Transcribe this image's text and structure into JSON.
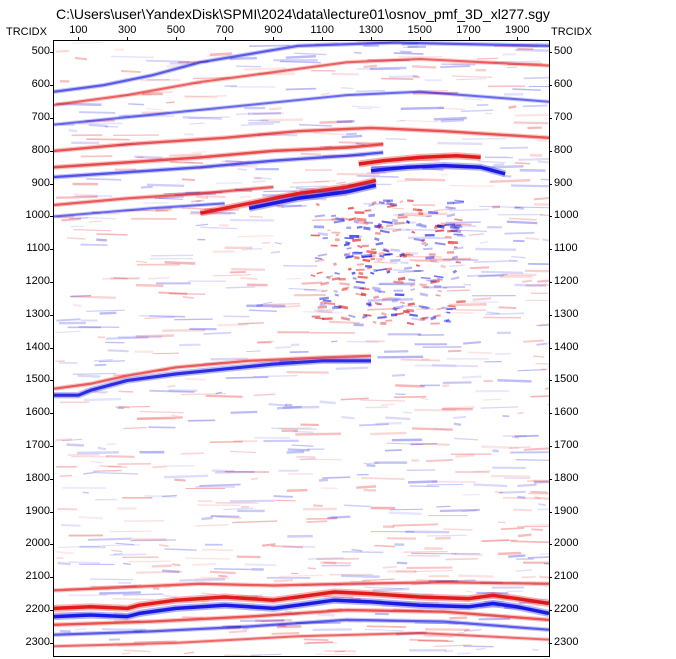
{
  "window": {
    "title": "C:\\Users\\user\\YandexDisk\\SPMI\\2024\\data\\lecture01\\osnov_pmf_3D_xl277.sgy"
  },
  "axes": {
    "left_label": "TRCIDX",
    "right_label": "TRCIDX"
  },
  "chart_data": {
    "type": "heatmap",
    "title": "C:\\Users\\user\\YandexDisk\\SPMI\\2024\\data\\lecture01\\osnov_pmf_3D_xl277.sgy",
    "x_ticks": [
      "100",
      "300",
      "500",
      "700",
      "900",
      "1100",
      "1300",
      "1500",
      "1700",
      "1900"
    ],
    "x_tick_values": [
      100,
      300,
      500,
      700,
      900,
      1100,
      1300,
      1500,
      1700,
      1900
    ],
    "xlim": [
      0,
      2030
    ],
    "y_ticks": [
      "500",
      "600",
      "700",
      "800",
      "900",
      "1000",
      "1100",
      "1200",
      "1300",
      "1400",
      "1500",
      "1600",
      "1700",
      "1800",
      "1900",
      "2000",
      "2100",
      "2200",
      "2300"
    ],
    "y_tick_values": [
      500,
      600,
      700,
      800,
      900,
      1000,
      1100,
      1200,
      1300,
      1400,
      1500,
      1600,
      1700,
      1800,
      1900,
      2000,
      2100,
      2200,
      2300
    ],
    "ylim": [
      465,
      2340
    ],
    "ylabel": "TRCIDX",
    "colormap": {
      "positive": "#e00000",
      "negative": "#0000e0",
      "zero": "#ffffff"
    },
    "reflectors": [
      {
        "name": "r0",
        "polarity": -1,
        "strength": 0.5,
        "points": [
          [
            0,
            620
          ],
          [
            200,
            600
          ],
          [
            400,
            570
          ],
          [
            600,
            530
          ],
          [
            800,
            505
          ],
          [
            1000,
            480
          ],
          [
            1400,
            470
          ],
          [
            2030,
            480
          ]
        ]
      },
      {
        "name": "r1",
        "polarity": 1,
        "strength": 0.45,
        "points": [
          [
            0,
            660
          ],
          [
            300,
            630
          ],
          [
            600,
            590
          ],
          [
            900,
            560
          ],
          [
            1200,
            530
          ],
          [
            1500,
            520
          ],
          [
            2030,
            540
          ]
        ]
      },
      {
        "name": "r2",
        "polarity": -1,
        "strength": 0.4,
        "points": [
          [
            0,
            720
          ],
          [
            400,
            690
          ],
          [
            800,
            660
          ],
          [
            1200,
            630
          ],
          [
            1500,
            620
          ],
          [
            2030,
            650
          ]
        ]
      },
      {
        "name": "r3",
        "polarity": 1,
        "strength": 0.55,
        "points": [
          [
            0,
            800
          ],
          [
            300,
            780
          ],
          [
            700,
            760
          ],
          [
            1000,
            740
          ],
          [
            1300,
            730
          ],
          [
            1600,
            740
          ],
          [
            2030,
            760
          ]
        ]
      },
      {
        "name": "r4",
        "polarity": 1,
        "strength": 0.6,
        "points": [
          [
            0,
            850
          ],
          [
            300,
            835
          ],
          [
            600,
            820
          ],
          [
            900,
            800
          ],
          [
            1200,
            790
          ],
          [
            1350,
            780
          ]
        ]
      },
      {
        "name": "r5",
        "polarity": -1,
        "strength": 0.55,
        "points": [
          [
            0,
            880
          ],
          [
            300,
            865
          ],
          [
            600,
            850
          ],
          [
            900,
            830
          ],
          [
            1200,
            815
          ],
          [
            1350,
            805
          ]
        ]
      },
      {
        "name": "r6",
        "polarity": 1,
        "strength": 1.0,
        "points": [
          [
            1250,
            840
          ],
          [
            1350,
            830
          ],
          [
            1500,
            820
          ],
          [
            1650,
            815
          ],
          [
            1750,
            820
          ]
        ]
      },
      {
        "name": "r7",
        "polarity": -1,
        "strength": 1.0,
        "points": [
          [
            1300,
            860
          ],
          [
            1450,
            850
          ],
          [
            1600,
            845
          ],
          [
            1750,
            850
          ],
          [
            1850,
            870
          ]
        ]
      },
      {
        "name": "r8",
        "polarity": 1,
        "strength": 0.95,
        "points": [
          [
            600,
            990
          ],
          [
            800,
            960
          ],
          [
            1000,
            930
          ],
          [
            1200,
            910
          ],
          [
            1320,
            890
          ]
        ]
      },
      {
        "name": "r9",
        "polarity": -1,
        "strength": 1.0,
        "points": [
          [
            800,
            975
          ],
          [
            1000,
            945
          ],
          [
            1200,
            925
          ],
          [
            1320,
            905
          ]
        ]
      },
      {
        "name": "r10",
        "polarity": 1,
        "strength": 0.5,
        "points": [
          [
            0,
            965
          ],
          [
            300,
            945
          ],
          [
            600,
            930
          ],
          [
            900,
            910
          ]
        ]
      },
      {
        "name": "r11",
        "polarity": -1,
        "strength": 0.4,
        "points": [
          [
            0,
            1000
          ],
          [
            400,
            975
          ],
          [
            700,
            960
          ]
        ]
      },
      {
        "name": "r12",
        "polarity": -1,
        "strength": 0.85,
        "points": [
          [
            0,
            1545
          ],
          [
            100,
            1545
          ],
          [
            150,
            1530
          ],
          [
            300,
            1500
          ],
          [
            500,
            1480
          ],
          [
            700,
            1465
          ],
          [
            900,
            1450
          ],
          [
            1100,
            1440
          ],
          [
            1300,
            1440
          ]
        ]
      },
      {
        "name": "r13",
        "polarity": 1,
        "strength": 0.5,
        "points": [
          [
            0,
            1525
          ],
          [
            150,
            1510
          ],
          [
            300,
            1485
          ],
          [
            500,
            1460
          ],
          [
            800,
            1440
          ],
          [
            1100,
            1430
          ],
          [
            1300,
            1425
          ]
        ]
      },
      {
        "name": "r14",
        "polarity": 1,
        "strength": 0.5,
        "points": [
          [
            0,
            2140
          ],
          [
            300,
            2130
          ],
          [
            600,
            2120
          ],
          [
            900,
            2125
          ],
          [
            1200,
            2120
          ],
          [
            1600,
            2115
          ],
          [
            2030,
            2120
          ]
        ]
      },
      {
        "name": "r15",
        "polarity": 1,
        "strength": 1.0,
        "points": [
          [
            0,
            2195
          ],
          [
            150,
            2190
          ],
          [
            300,
            2195
          ],
          [
            350,
            2185
          ],
          [
            500,
            2170
          ],
          [
            700,
            2160
          ],
          [
            800,
            2165
          ],
          [
            900,
            2170
          ],
          [
            1000,
            2160
          ],
          [
            1150,
            2145
          ],
          [
            1300,
            2150
          ],
          [
            1500,
            2160
          ],
          [
            1700,
            2165
          ],
          [
            1800,
            2155
          ],
          [
            1900,
            2165
          ],
          [
            2030,
            2180
          ]
        ]
      },
      {
        "name": "r16",
        "polarity": -1,
        "strength": 1.0,
        "points": [
          [
            0,
            2220
          ],
          [
            150,
            2215
          ],
          [
            300,
            2220
          ],
          [
            350,
            2210
          ],
          [
            500,
            2195
          ],
          [
            700,
            2185
          ],
          [
            800,
            2190
          ],
          [
            900,
            2195
          ],
          [
            1000,
            2185
          ],
          [
            1150,
            2170
          ],
          [
            1300,
            2175
          ],
          [
            1500,
            2185
          ],
          [
            1700,
            2190
          ],
          [
            1800,
            2180
          ],
          [
            1900,
            2190
          ],
          [
            2030,
            2210
          ]
        ]
      },
      {
        "name": "r17",
        "polarity": 1,
        "strength": 0.55,
        "points": [
          [
            0,
            2245
          ],
          [
            400,
            2235
          ],
          [
            800,
            2220
          ],
          [
            1200,
            2200
          ],
          [
            1600,
            2205
          ],
          [
            2030,
            2230
          ]
        ]
      },
      {
        "name": "r18",
        "polarity": -1,
        "strength": 0.5,
        "points": [
          [
            0,
            2275
          ],
          [
            400,
            2265
          ],
          [
            800,
            2250
          ],
          [
            1200,
            2230
          ],
          [
            1600,
            2235
          ],
          [
            2030,
            2260
          ]
        ]
      },
      {
        "name": "r19",
        "polarity": 1,
        "strength": 0.4,
        "points": [
          [
            0,
            2310
          ],
          [
            500,
            2300
          ],
          [
            1000,
            2280
          ],
          [
            1500,
            2270
          ],
          [
            2030,
            2290
          ]
        ]
      }
    ]
  }
}
